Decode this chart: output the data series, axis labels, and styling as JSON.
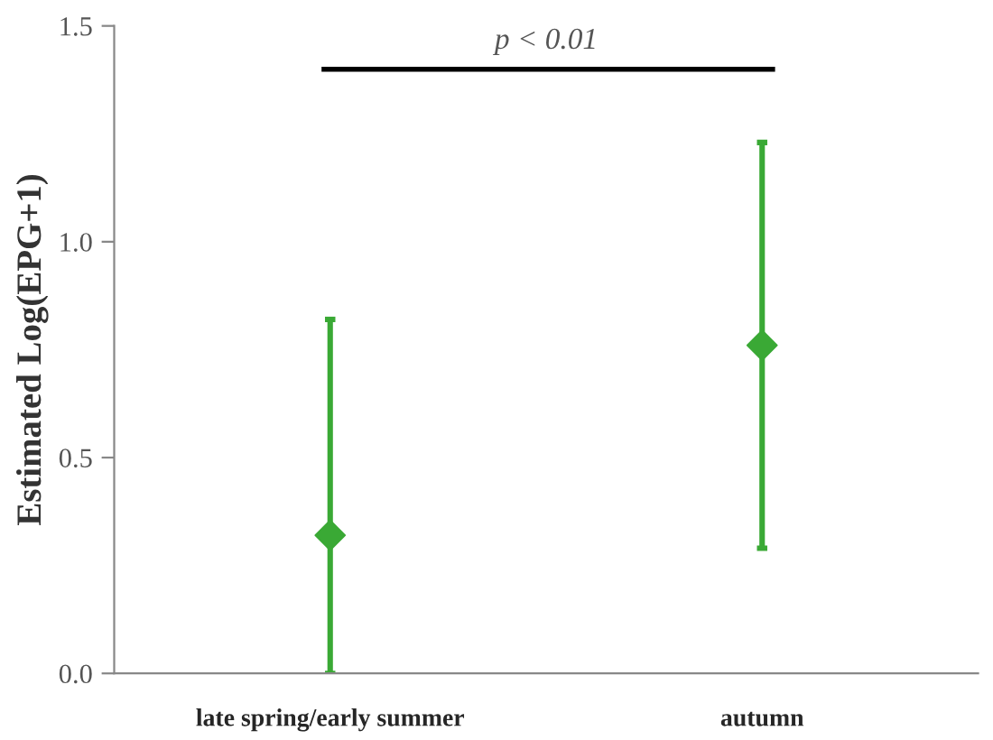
{
  "chart_data": {
    "type": "scatter",
    "ylabel": "Estimated Log(EPG+1)",
    "categories": [
      "late spring/early summer",
      "autumn"
    ],
    "series": [
      {
        "color": "#3aa935",
        "values": [
          0.32,
          0.76
        ],
        "errors": [
          [
            0,
            0.82
          ],
          [
            0.29,
            1.23
          ]
        ]
      }
    ],
    "marker": "diamond",
    "ylim": [
      0,
      1.5
    ],
    "yticks": [
      {
        "value": 0,
        "label": "0.0"
      },
      0.5,
      {
        "value": 1,
        "label": "1.0"
      },
      1.5
    ],
    "annotations": [
      "p < 0.01"
    ],
    "grid": false,
    "legend": false
  }
}
